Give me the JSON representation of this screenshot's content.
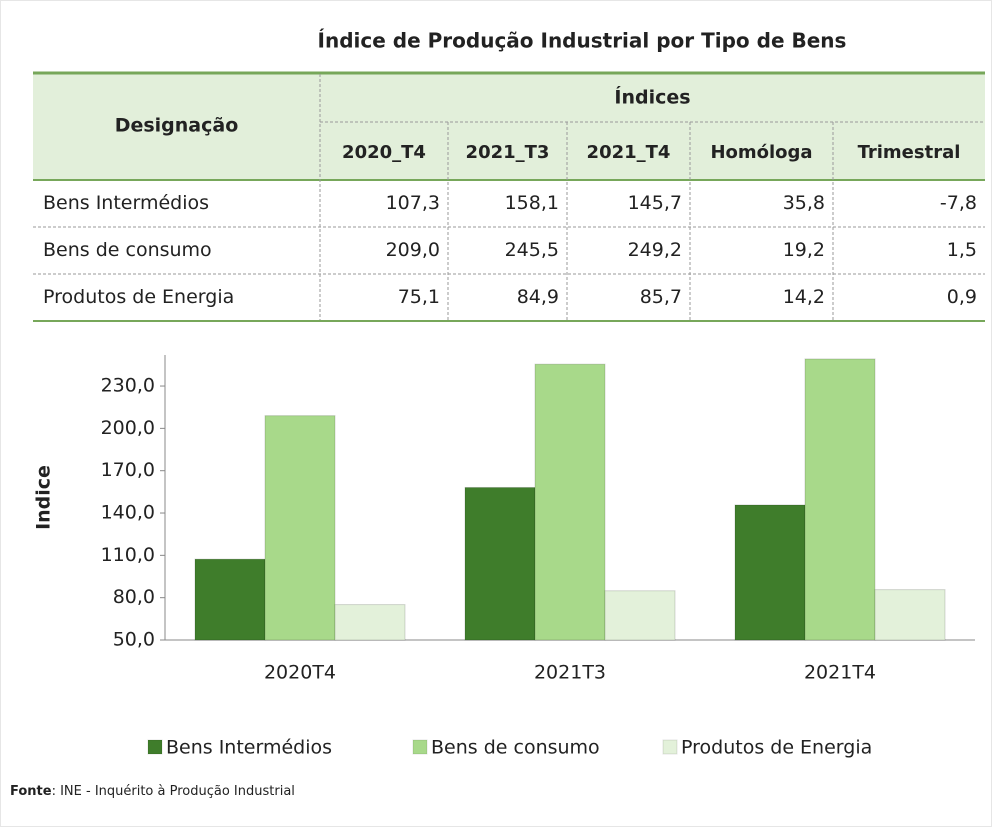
{
  "title": "Índice de Produção Industrial por Tipo de Bens",
  "table": {
    "header": {
      "designation": "Designação",
      "group": "Índices",
      "columns": [
        "2020_T4",
        "2021_T3",
        "2021_T4",
        "Homóloga",
        "Trimestral"
      ]
    },
    "rows": [
      [
        "Bens Intermédios",
        "107,3",
        "158,1",
        "145,7",
        "35,8",
        "-7,8"
      ],
      [
        "Bens de consumo",
        "209,0",
        "245,5",
        "249,2",
        "19,2",
        "1,5"
      ],
      [
        "Produtos de Energia",
        "75,1",
        "84,9",
        "85,7",
        "14,2",
        "0,9"
      ]
    ]
  },
  "chart_data": {
    "type": "bar",
    "ylabel": "Indice",
    "categories": [
      "2020T4",
      "2021T3",
      "2021T4"
    ],
    "series": [
      {
        "name": "Bens Intermédios",
        "color": "#3f7d2b",
        "values": [
          107.3,
          158.1,
          145.7
        ]
      },
      {
        "name": "Bens de consumo",
        "color": "#a8d98a",
        "values": [
          209.0,
          245.5,
          249.2
        ]
      },
      {
        "name": "Produtos de Energia",
        "color": "#e3f1da",
        "values": [
          75.1,
          84.9,
          85.7
        ]
      }
    ],
    "ylim": [
      50,
      252
    ],
    "yticks": [
      {
        "value": 50,
        "label": "50,0"
      },
      {
        "value": 80,
        "label": "80,0"
      },
      {
        "value": 110,
        "label": "110,0"
      },
      {
        "value": 140,
        "label": "140,0"
      },
      {
        "value": 170,
        "label": "170,0"
      },
      {
        "value": 200,
        "label": "200,0"
      },
      {
        "value": 230,
        "label": "230,0"
      }
    ],
    "legend": "bottom"
  },
  "source": {
    "label": "Fonte",
    "text": ": INE - Inquérito à Produção Industrial"
  }
}
